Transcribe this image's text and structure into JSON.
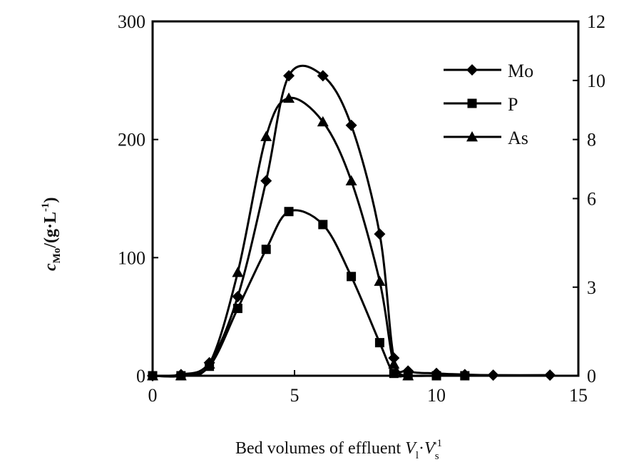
{
  "chart_data": {
    "type": "line",
    "title": "",
    "xlabel": {
      "main": "Bed volumes of effluent ",
      "var1": "V",
      "sub1": "l",
      "dot": "·",
      "var2": "V",
      "sub2": "s",
      "sup2": "-1"
    },
    "ylabel": {
      "var": "c",
      "sub": "Mo",
      "rest": "/(g·L",
      "sup": "-1",
      "close": ")"
    },
    "xlim": [
      0,
      15
    ],
    "ylim": [
      0,
      300
    ],
    "y2lim": [
      0,
      12
    ],
    "xticks": [
      0,
      5,
      10,
      15
    ],
    "yticks": [
      0,
      100,
      200,
      300
    ],
    "y2ticks": [
      {
        "label": "0",
        "value": 0
      },
      {
        "label": "3",
        "value": 3
      },
      {
        "label": "6",
        "value": 6
      },
      {
        "label": "8",
        "value": 8
      },
      {
        "label": "10",
        "value": 10
      },
      {
        "label": "12",
        "value": 12
      }
    ],
    "grid": false,
    "legend_position": "top-right",
    "series": [
      {
        "name": "Mo",
        "axis": "left",
        "marker": "diamond",
        "x": [
          0,
          1,
          2,
          3,
          4,
          4.8,
          6,
          7,
          8,
          8.5,
          9,
          10,
          11,
          12,
          14
        ],
        "values": [
          0,
          1,
          11,
          67,
          165,
          254,
          254,
          212,
          120,
          15,
          4,
          2,
          1,
          0.5,
          0.5
        ]
      },
      {
        "name": "P",
        "axis": "left",
        "marker": "square",
        "x": [
          0,
          1,
          2,
          3,
          4,
          4.8,
          6,
          7,
          8,
          8.5,
          9,
          10,
          11
        ],
        "values": [
          0,
          0,
          8,
          57,
          107,
          139,
          128,
          84,
          28,
          2,
          0,
          0,
          0
        ]
      },
      {
        "name": "As",
        "axis": "right",
        "marker": "triangle",
        "x": [
          0,
          1,
          2,
          3,
          4,
          4.8,
          6,
          7,
          8,
          8.5,
          9
        ],
        "values": [
          0,
          0,
          0.4,
          3.5,
          8.1,
          9.4,
          8.6,
          6.6,
          3.2,
          0.4,
          0
        ]
      }
    ]
  }
}
